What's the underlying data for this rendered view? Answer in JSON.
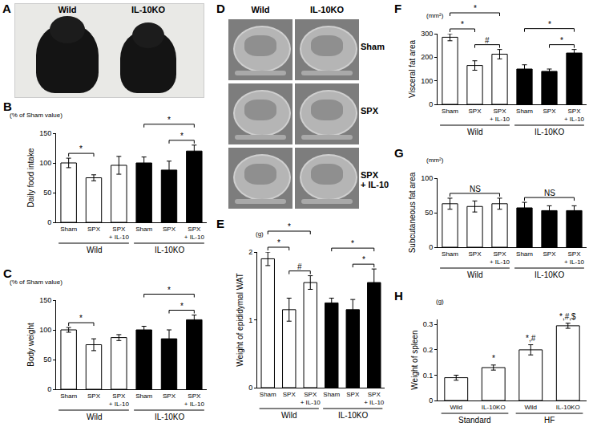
{
  "photo": {
    "panel": "A",
    "labels": [
      "Wild",
      "IL-10KO"
    ]
  },
  "ct_images": {
    "panel": "D",
    "columns": [
      "Wild",
      "IL-10KO"
    ],
    "rows": [
      "Sham",
      "SPX",
      "SPX + IL-10"
    ]
  },
  "chart_data": [
    {
      "type": "bar",
      "panel": "B",
      "ylabel": "Daily food intake",
      "yunit": "(% of Sham value)",
      "categories": [
        "Sham",
        "SPX",
        "SPX + IL-10",
        "Sham",
        "SPX",
        "SPX + IL-10"
      ],
      "groups": [
        {
          "name": "Wild",
          "span": [
            0,
            2
          ]
        },
        {
          "name": "IL-10KO",
          "span": [
            3,
            5
          ]
        }
      ],
      "values": [
        100,
        75,
        96,
        100,
        88,
        120
      ],
      "errors": [
        8,
        5,
        15,
        10,
        15,
        10
      ],
      "colors": [
        "#ffffff",
        "#ffffff",
        "#ffffff",
        "#000000",
        "#000000",
        "#000000"
      ],
      "ylim": [
        0,
        150
      ],
      "yticks": [
        0,
        50,
        100,
        150
      ],
      "comparisons": [
        {
          "from": 0,
          "to": 1,
          "label": "*"
        },
        {
          "from": 3,
          "to": 5,
          "label": "*"
        },
        {
          "from": 4,
          "to": 5,
          "label": "*"
        }
      ]
    },
    {
      "type": "bar",
      "panel": "C",
      "ylabel": "Body weight",
      "yunit": "(% of Sham value)",
      "categories": [
        "Sham",
        "SPX",
        "SPX + IL-10",
        "Sham",
        "SPX",
        "SPX + IL-10"
      ],
      "groups": [
        {
          "name": "Wild",
          "span": [
            0,
            2
          ]
        },
        {
          "name": "IL-10KO",
          "span": [
            3,
            5
          ]
        }
      ],
      "values": [
        100,
        75,
        87,
        100,
        85,
        117
      ],
      "errors": [
        4,
        10,
        5,
        6,
        15,
        8
      ],
      "colors": [
        "#ffffff",
        "#ffffff",
        "#ffffff",
        "#000000",
        "#000000",
        "#000000"
      ],
      "ylim": [
        0,
        150
      ],
      "yticks": [
        0,
        50,
        100,
        150
      ],
      "comparisons": [
        {
          "from": 0,
          "to": 1,
          "label": "*"
        },
        {
          "from": 3,
          "to": 5,
          "label": "*"
        },
        {
          "from": 4,
          "to": 5,
          "label": "*"
        }
      ]
    },
    {
      "type": "bar",
      "panel": "E",
      "ylabel": "Weight of epididymal WAT",
      "yunit": "(g)",
      "categories": [
        "Sham",
        "SPX",
        "SPX + IL-10",
        "Sham",
        "SPX",
        "SPX + IL-10"
      ],
      "groups": [
        {
          "name": "Wild",
          "span": [
            0,
            2
          ]
        },
        {
          "name": "IL-10KO",
          "span": [
            3,
            5
          ]
        }
      ],
      "values": [
        1.9,
        1.15,
        1.55,
        1.25,
        1.15,
        1.55
      ],
      "errors": [
        0.1,
        0.17,
        0.1,
        0.07,
        0.15,
        0.2
      ],
      "colors": [
        "#ffffff",
        "#ffffff",
        "#ffffff",
        "#000000",
        "#000000",
        "#000000"
      ],
      "ylim": [
        0,
        2
      ],
      "yticks": [
        0,
        1,
        2
      ],
      "comparisons": [
        {
          "from": 0,
          "to": 1,
          "label": "*"
        },
        {
          "from": 0,
          "to": 2,
          "label": "*"
        },
        {
          "from": 1,
          "to": 2,
          "label": "#"
        },
        {
          "from": 3,
          "to": 5,
          "label": "*"
        },
        {
          "from": 4,
          "to": 5,
          "label": "*"
        }
      ]
    },
    {
      "type": "bar",
      "panel": "F",
      "ylabel": "Visceral fat area",
      "yunit": "(mm²)",
      "categories": [
        "Sham",
        "SPX",
        "SPX + IL-10",
        "Sham",
        "SPX",
        "SPX + IL-10"
      ],
      "groups": [
        {
          "name": "Wild",
          "span": [
            0,
            2
          ]
        },
        {
          "name": "IL-10KO",
          "span": [
            3,
            5
          ]
        }
      ],
      "values": [
        285,
        165,
        213,
        150,
        140,
        218
      ],
      "errors": [
        15,
        20,
        20,
        18,
        10,
        15
      ],
      "colors": [
        "#ffffff",
        "#ffffff",
        "#ffffff",
        "#000000",
        "#000000",
        "#000000"
      ],
      "ylim": [
        0,
        300
      ],
      "yticks": [
        0,
        100,
        200,
        300
      ],
      "comparisons": [
        {
          "from": 0,
          "to": 1,
          "label": "*"
        },
        {
          "from": 0,
          "to": 2,
          "label": "*"
        },
        {
          "from": 1,
          "to": 2,
          "label": "#"
        },
        {
          "from": 3,
          "to": 5,
          "label": "*"
        },
        {
          "from": 4,
          "to": 5,
          "label": "*"
        }
      ]
    },
    {
      "type": "bar",
      "panel": "G",
      "ylabel": "Subcutaneous fat area",
      "yunit": "(mm²)",
      "categories": [
        "Sham",
        "SPX",
        "SPX + IL-10",
        "Sham",
        "SPX",
        "SPX + IL-10"
      ],
      "groups": [
        {
          "name": "Wild",
          "span": [
            0,
            2
          ]
        },
        {
          "name": "IL-10KO",
          "span": [
            3,
            5
          ]
        }
      ],
      "values": [
        63,
        59,
        63,
        57,
        53,
        53
      ],
      "errors": [
        8,
        8,
        8,
        8,
        7,
        7
      ],
      "colors": [
        "#ffffff",
        "#ffffff",
        "#ffffff",
        "#000000",
        "#000000",
        "#000000"
      ],
      "ylim": [
        0,
        100
      ],
      "yticks": [
        0,
        50,
        100
      ],
      "comparisons": [
        {
          "from": 0,
          "to": 2,
          "label": "NS"
        },
        {
          "from": 3,
          "to": 5,
          "label": "NS"
        }
      ]
    },
    {
      "type": "bar",
      "panel": "H",
      "ylabel": "Weight of spleen",
      "yunit": "(g)",
      "categories": [
        "Wild",
        "IL-10KO",
        "Wild",
        "IL-10KO"
      ],
      "groups": [
        {
          "name": "Standard",
          "span": [
            0,
            1
          ]
        },
        {
          "name": "HF",
          "span": [
            2,
            3
          ]
        }
      ],
      "values": [
        0.09,
        0.13,
        0.2,
        0.295
      ],
      "errors": [
        0.01,
        0.01,
        0.02,
        0.01
      ],
      "colors": [
        "#ffffff",
        "#ffffff",
        "#ffffff",
        "#ffffff"
      ],
      "ylim": [
        0,
        0.32
      ],
      "yticks": [
        0,
        0.1,
        0.2,
        0.3
      ],
      "labels_above": [
        null,
        "*",
        "*,#",
        "*,#,$"
      ],
      "comparisons": []
    }
  ]
}
